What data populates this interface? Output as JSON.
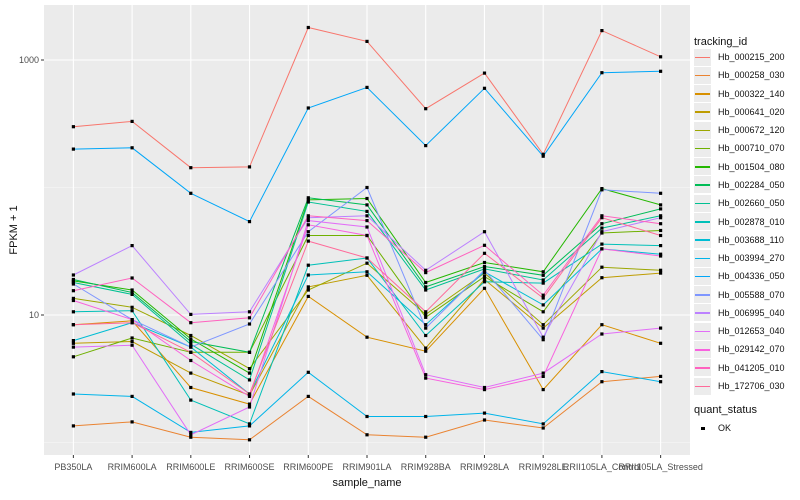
{
  "figure": {
    "xlabel": "sample_name",
    "ylabel": "FPKM + 1",
    "legend": {
      "tracking_title": "tracking_id",
      "quant_title": "quant_status",
      "quant_items": [
        {
          "label": "OK"
        }
      ]
    },
    "colors": {
      "panel_background": "#EBEBEB",
      "grid_major": "#FFFFFF",
      "grid_minor": "#F5F5F5",
      "tick_text": "#4D4D4D",
      "point": "#000000",
      "legend_key_background": "#ECECEC"
    }
  },
  "chart_data": {
    "type": "line",
    "title": "",
    "xlabel": "sample_name",
    "ylabel": "FPKM + 1",
    "y_scale": "log10",
    "y_breaks": [
      10,
      1000
    ],
    "y_break_labels": [
      "10",
      "1000"
    ],
    "y_minor_breaks": [
      1,
      100
    ],
    "ylim": [
      0.8,
      2700
    ],
    "grid": true,
    "legend_position": "right",
    "point_shape": "filled-black-square",
    "categories": [
      "PB350LA",
      "RRIM600LA",
      "RRIM600LE",
      "RRIM600SE",
      "RRIM600PE",
      "RRIM901LA",
      "RRIM928BA",
      "RRIM928LA",
      "RRIM928LE",
      "RRII105LA_Control",
      "RRII105LA_Stressed"
    ],
    "series": [
      {
        "name": "Hb_000215_200",
        "color": "#F8766D",
        "values": [
          300,
          330,
          143,
          145,
          1800,
          1400,
          415,
          790,
          182,
          1700,
          1060
        ]
      },
      {
        "name": "Hb_000258_030",
        "color": "#EA8331",
        "values": [
          1.35,
          1.45,
          1.1,
          1.05,
          2.3,
          1.15,
          1.1,
          1.5,
          1.3,
          3.0,
          3.3
        ]
      },
      {
        "name": "Hb_000322_140",
        "color": "#D89000",
        "values": [
          8.4,
          9.0,
          2.7,
          2.0,
          14,
          6.7,
          5.2,
          16.2,
          2.6,
          8.4,
          6.0
        ]
      },
      {
        "name": "Hb_000641_020",
        "color": "#BE9C00",
        "values": [
          6.0,
          6.2,
          3.5,
          2.35,
          16.6,
          20.5,
          5.5,
          19,
          7.9,
          19.6,
          21.3
        ]
      },
      {
        "name": "Hb_000672_120",
        "color": "#9CA700",
        "values": [
          13.5,
          11.5,
          6.9,
          3.8,
          15.7,
          25.5,
          10.1,
          21.3,
          8.4,
          23.7,
          22.4
        ]
      },
      {
        "name": "Hb_000710_070",
        "color": "#6FB000",
        "values": [
          4.7,
          6.6,
          5.1,
          5.1,
          42,
          42,
          9.6,
          20,
          10.6,
          44,
          46
        ]
      },
      {
        "name": "Hb_001504_080",
        "color": "#24B700",
        "values": [
          18.5,
          15.7,
          6.5,
          3.5,
          80,
          82,
          18,
          25.8,
          21.8,
          98,
          73
        ]
      },
      {
        "name": "Hb_002284_050",
        "color": "#00BC56",
        "values": [
          19,
          15,
          6.2,
          5.1,
          83,
          73,
          16.6,
          24,
          20.5,
          52,
          68
        ]
      },
      {
        "name": "Hb_002660_050",
        "color": "#00C092",
        "values": [
          18,
          14.5,
          5.9,
          3.1,
          77,
          65,
          15.7,
          23,
          18.8,
          48,
          60
        ]
      },
      {
        "name": "Hb_002878_010",
        "color": "#00C0B8",
        "values": [
          10.6,
          10.8,
          2.15,
          1.4,
          24.6,
          28,
          6.9,
          18.2,
          17.8,
          36,
          35
        ]
      },
      {
        "name": "Hb_003688_110",
        "color": "#00BDD4",
        "values": [
          6.3,
          8.7,
          5.6,
          2.4,
          20.6,
          21.8,
          8.4,
          21.8,
          12,
          33,
          30
        ]
      },
      {
        "name": "Hb_003994_270",
        "color": "#00B4E9",
        "values": [
          2.4,
          2.3,
          1.2,
          1.35,
          3.55,
          1.6,
          1.6,
          1.7,
          1.4,
          3.6,
          3.0
        ]
      },
      {
        "name": "Hb_004336_050",
        "color": "#00A6F8",
        "values": [
          200,
          205,
          90,
          54,
          420,
          610,
          213,
          600,
          176,
          795,
          815
        ]
      },
      {
        "name": "Hb_005588_070",
        "color": "#7E96FF",
        "values": [
          17.5,
          9.2,
          5.6,
          8.5,
          45,
          100,
          7.9,
          22.5,
          6.4,
          96,
          90
        ]
      },
      {
        "name": "Hb_006995_040",
        "color": "#BC81FF",
        "values": [
          20.6,
          35,
          10.1,
          10.6,
          58,
          60,
          22.4,
          45,
          6.7,
          45,
          58
        ]
      },
      {
        "name": "Hb_012653_040",
        "color": "#E26EF7",
        "values": [
          5.6,
          5.8,
          1.15,
          1.9,
          55,
          49,
          3.4,
          2.7,
          3.5,
          7.1,
          7.9
        ]
      },
      {
        "name": "Hb_029142_070",
        "color": "#F863DF",
        "values": [
          13,
          9.2,
          4.4,
          2.3,
          51,
          42,
          3.2,
          2.6,
          3.3,
          33,
          29
        ]
      },
      {
        "name": "Hb_041205_010",
        "color": "#FF62BF",
        "values": [
          15.5,
          19.5,
          8.7,
          9.5,
          60,
          55,
          21.5,
          35.2,
          14.3,
          60,
          52
        ]
      },
      {
        "name": "Hb_172706_030",
        "color": "#FF6A9A",
        "values": [
          8.4,
          8.7,
          5.1,
          2.4,
          38,
          28,
          10.6,
          30.5,
          13.6,
          58,
          42
        ]
      }
    ]
  }
}
